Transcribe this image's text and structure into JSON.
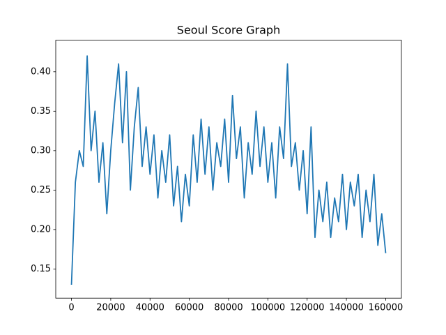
{
  "chart_data": {
    "type": "line",
    "title": "Seoul Score Graph",
    "x": [
      0,
      2000,
      4000,
      6000,
      8000,
      10000,
      12000,
      14000,
      16000,
      18000,
      20000,
      22000,
      24000,
      26000,
      28000,
      30000,
      32000,
      34000,
      36000,
      38000,
      40000,
      42000,
      44000,
      46000,
      48000,
      50000,
      52000,
      54000,
      56000,
      58000,
      60000,
      62000,
      64000,
      66000,
      68000,
      70000,
      72000,
      74000,
      76000,
      78000,
      80000,
      82000,
      84000,
      86000,
      88000,
      90000,
      92000,
      94000,
      96000,
      98000,
      100000,
      102000,
      104000,
      106000,
      108000,
      110000,
      112000,
      114000,
      116000,
      118000,
      120000,
      122000,
      124000,
      126000,
      128000,
      130000,
      132000,
      134000,
      136000,
      138000,
      140000,
      142000,
      144000,
      146000,
      148000,
      150000,
      152000,
      154000,
      156000,
      158000,
      160000
    ],
    "series": [
      {
        "name": "Seoul",
        "color": "#1f77b4",
        "values": [
          0.13,
          0.26,
          0.3,
          0.28,
          0.42,
          0.3,
          0.35,
          0.26,
          0.31,
          0.22,
          0.3,
          0.36,
          0.41,
          0.31,
          0.4,
          0.25,
          0.33,
          0.38,
          0.28,
          0.33,
          0.27,
          0.32,
          0.24,
          0.3,
          0.26,
          0.32,
          0.23,
          0.28,
          0.21,
          0.27,
          0.23,
          0.32,
          0.26,
          0.34,
          0.27,
          0.33,
          0.25,
          0.31,
          0.28,
          0.34,
          0.26,
          0.37,
          0.29,
          0.33,
          0.24,
          0.31,
          0.27,
          0.35,
          0.28,
          0.33,
          0.26,
          0.31,
          0.24,
          0.33,
          0.29,
          0.41,
          0.28,
          0.31,
          0.25,
          0.3,
          0.22,
          0.33,
          0.19,
          0.25,
          0.21,
          0.26,
          0.19,
          0.24,
          0.21,
          0.27,
          0.2,
          0.26,
          0.23,
          0.27,
          0.19,
          0.25,
          0.21,
          0.27,
          0.18,
          0.22,
          0.17
        ]
      }
    ],
    "xlim": [
      -8000,
      168000
    ],
    "ylim": [
      0.113,
      0.44
    ],
    "xticks": [
      0,
      20000,
      40000,
      60000,
      80000,
      100000,
      120000,
      140000,
      160000
    ],
    "yticks": [
      0.15,
      {
        "value": 0.2,
        "label": "0.20"
      },
      0.25,
      {
        "value": 0.3,
        "label": "0.30"
      },
      0.35,
      {
        "value": 0.4,
        "label": "0.40"
      }
    ],
    "grid": false
  }
}
